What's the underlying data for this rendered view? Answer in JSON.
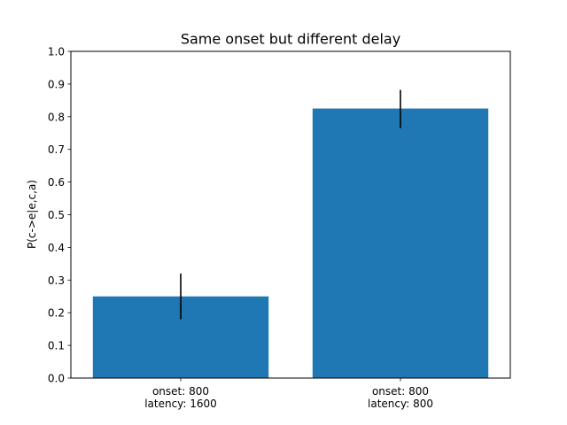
{
  "chart_data": {
    "type": "bar",
    "title": "Same onset but different delay",
    "xlabel": "",
    "ylabel": "P(c->e|e,c,a)",
    "ylim": [
      0,
      1.0
    ],
    "yticks": [
      "0.0",
      "0.1",
      "0.2",
      "0.3",
      "0.4",
      "0.5",
      "0.6",
      "0.7",
      "0.8",
      "0.9",
      "1.0"
    ],
    "categories": [
      [
        "onset: 800",
        "latency: 1600"
      ],
      [
        "onset: 800",
        "latency: 800"
      ]
    ],
    "values": [
      0.25,
      0.825
    ],
    "error_bars": [
      [
        0.18,
        0.32
      ],
      [
        0.765,
        0.882
      ]
    ],
    "bar_color": "#1f77b4",
    "grid": false
  }
}
